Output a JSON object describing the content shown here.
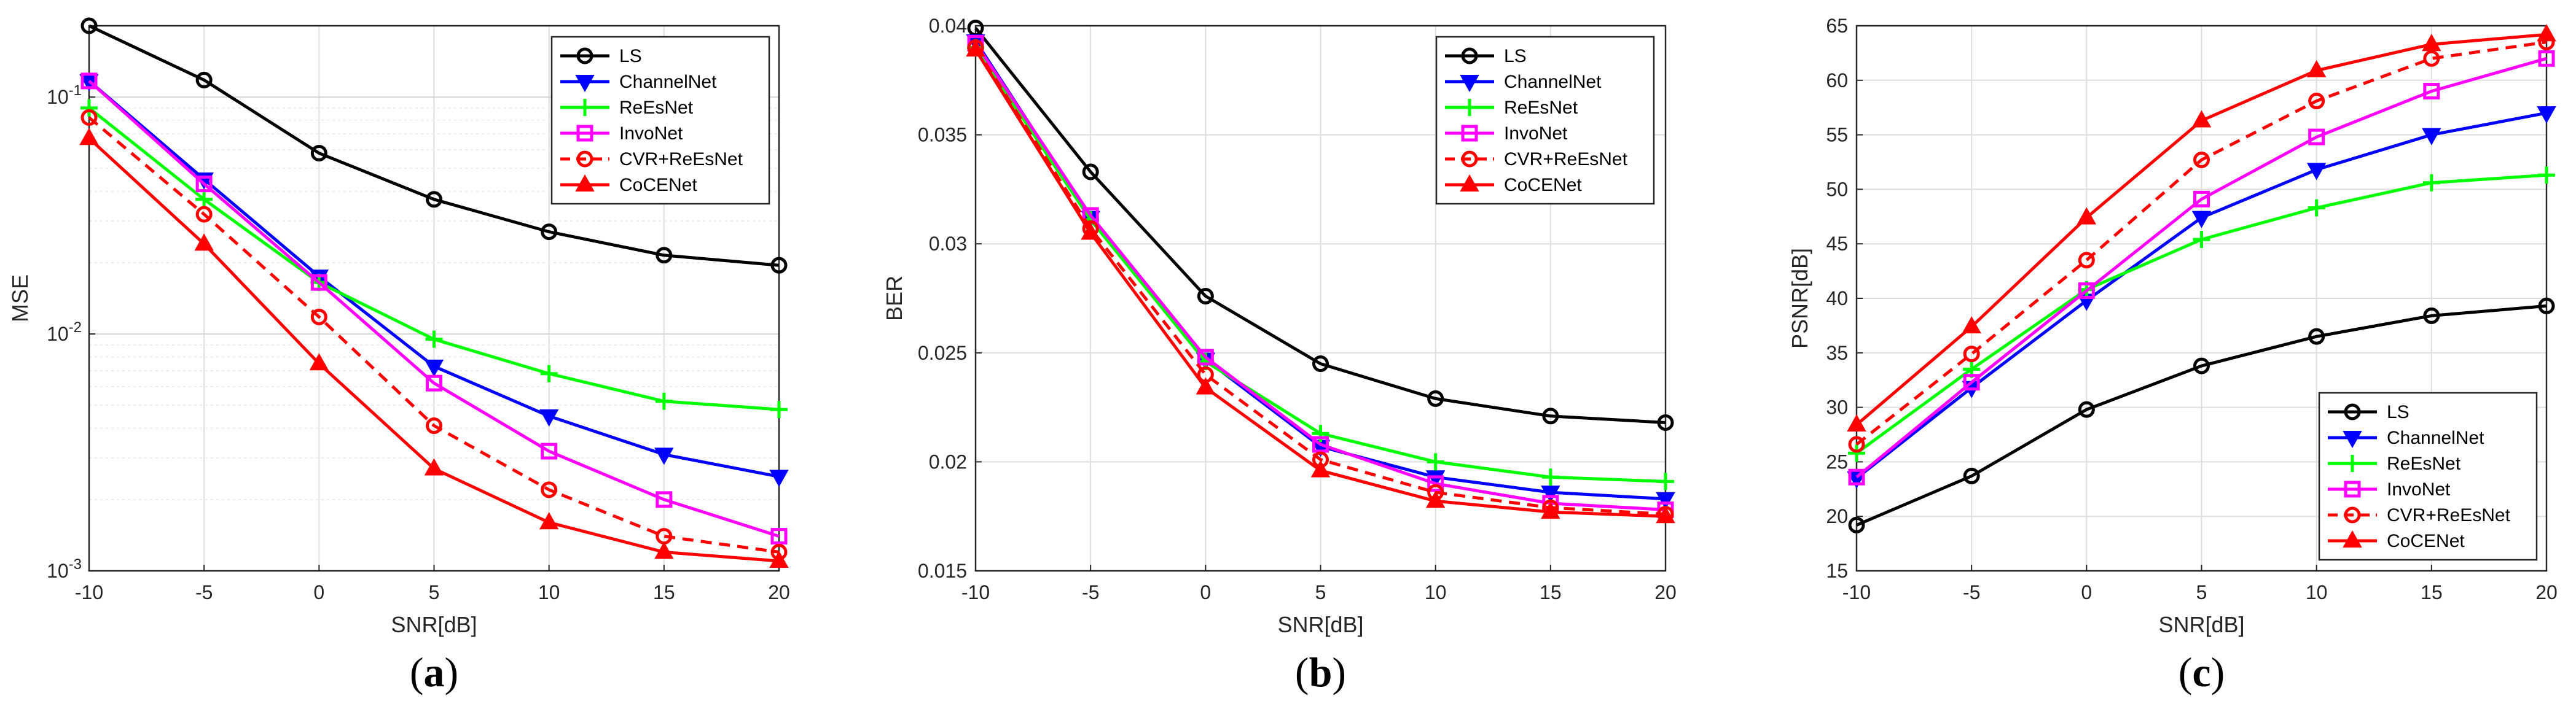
{
  "chart_data": [
    {
      "type": "line",
      "panel_label": "a",
      "caption_open": "(",
      "caption_close": ")",
      "xlabel": "SNR[dB]",
      "ylabel": "MSE",
      "yscale": "log",
      "xlim": [
        -10,
        20
      ],
      "ylim": [
        0.001,
        0.2
      ],
      "xticks": [
        -10,
        -5,
        0,
        5,
        10,
        15,
        20
      ],
      "yticks": [
        {
          "v": 0.001,
          "b": "10",
          "e": "-3"
        },
        {
          "v": 0.01,
          "b": "10",
          "e": "-2"
        },
        {
          "v": 0.1,
          "b": "10",
          "e": "-1"
        }
      ],
      "grid": true,
      "legend_position": "top-right",
      "x": [
        -10,
        -5,
        0,
        5,
        10,
        15,
        20
      ],
      "series": [
        {
          "name": "LS",
          "color": "#000000",
          "marker": "o",
          "dash": false,
          "values": [
            0.2,
            0.118,
            0.058,
            0.037,
            0.027,
            0.0215,
            0.0195
          ]
        },
        {
          "name": "ChannelNet",
          "color": "#0000ff",
          "marker": "v",
          "dash": false,
          "values": [
            0.117,
            0.045,
            0.0175,
            0.0073,
            0.0045,
            0.0031,
            0.0025
          ]
        },
        {
          "name": "ReEsNet",
          "color": "#00ff00",
          "marker": "+",
          "dash": false,
          "values": [
            0.09,
            0.037,
            0.0165,
            0.0095,
            0.0068,
            0.0052,
            0.0048
          ]
        },
        {
          "name": "InvoNet",
          "color": "#ff00ff",
          "marker": "s",
          "dash": false,
          "values": [
            0.117,
            0.043,
            0.0165,
            0.0062,
            0.0032,
            0.002,
            0.0014
          ]
        },
        {
          "name": "CVR+ReEsNet",
          "color": "#ff0000",
          "marker": "o",
          "dash": true,
          "values": [
            0.082,
            0.032,
            0.0118,
            0.0041,
            0.0022,
            0.0014,
            0.0012
          ]
        },
        {
          "name": "CoCENet",
          "color": "#ff0000",
          "marker": "^",
          "dash": false,
          "values": [
            0.067,
            0.024,
            0.0075,
            0.0027,
            0.0016,
            0.0012,
            0.0011
          ]
        }
      ]
    },
    {
      "type": "line",
      "panel_label": "b",
      "caption_open": "(",
      "caption_close": ")",
      "xlabel": "SNR[dB]",
      "ylabel": "BER",
      "yscale": "linear",
      "xlim": [
        -10,
        20
      ],
      "ylim": [
        0.015,
        0.04
      ],
      "xticks": [
        -10,
        -5,
        0,
        5,
        10,
        15,
        20
      ],
      "yticks": [
        {
          "v": 0.015,
          "t": "0.015"
        },
        {
          "v": 0.02,
          "t": "0.02"
        },
        {
          "v": 0.025,
          "t": "0.025"
        },
        {
          "v": 0.03,
          "t": "0.03"
        },
        {
          "v": 0.035,
          "t": "0.035"
        },
        {
          "v": 0.04,
          "t": "0.04"
        }
      ],
      "grid": true,
      "legend_position": "top-right",
      "x": [
        -10,
        -5,
        0,
        5,
        10,
        15,
        20
      ],
      "series": [
        {
          "name": "LS",
          "color": "#000000",
          "marker": "o",
          "dash": false,
          "values": [
            0.0399,
            0.0333,
            0.0276,
            0.0245,
            0.0229,
            0.0221,
            0.0218
          ]
        },
        {
          "name": "ChannelNet",
          "color": "#0000ff",
          "marker": "v",
          "dash": false,
          "values": [
            0.0393,
            0.0312,
            0.0247,
            0.0207,
            0.0193,
            0.0186,
            0.0183
          ]
        },
        {
          "name": "ReEsNet",
          "color": "#00ff00",
          "marker": "+",
          "dash": false,
          "values": [
            0.039,
            0.0311,
            0.0246,
            0.0213,
            0.02,
            0.0193,
            0.0191
          ]
        },
        {
          "name": "InvoNet",
          "color": "#ff00ff",
          "marker": "s",
          "dash": false,
          "values": [
            0.0392,
            0.0313,
            0.0248,
            0.0208,
            0.019,
            0.0181,
            0.0178
          ]
        },
        {
          "name": "CVR+ReEsNet",
          "color": "#ff0000",
          "marker": "o",
          "dash": true,
          "values": [
            0.039,
            0.0307,
            0.024,
            0.0201,
            0.0186,
            0.0179,
            0.0176
          ]
        },
        {
          "name": "CoCENet",
          "color": "#ff0000",
          "marker": "^",
          "dash": false,
          "values": [
            0.0389,
            0.0305,
            0.0234,
            0.0196,
            0.0182,
            0.0177,
            0.0175
          ]
        }
      ]
    },
    {
      "type": "line",
      "panel_label": "c",
      "caption_open": "(",
      "caption_close": ")",
      "xlabel": "SNR[dB]",
      "ylabel": "PSNR[dB]",
      "yscale": "linear",
      "xlim": [
        -10,
        20
      ],
      "ylim": [
        15,
        65
      ],
      "xticks": [
        -10,
        -5,
        0,
        5,
        10,
        15,
        20
      ],
      "yticks": [
        {
          "v": 15,
          "t": "15"
        },
        {
          "v": 20,
          "t": "20"
        },
        {
          "v": 25,
          "t": "25"
        },
        {
          "v": 30,
          "t": "30"
        },
        {
          "v": 35,
          "t": "35"
        },
        {
          "v": 40,
          "t": "40"
        },
        {
          "v": 45,
          "t": "45"
        },
        {
          "v": 50,
          "t": "50"
        },
        {
          "v": 55,
          "t": "55"
        },
        {
          "v": 60,
          "t": "60"
        },
        {
          "v": 65,
          "t": "65"
        }
      ],
      "grid": true,
      "legend_position": "bottom-right",
      "x": [
        -10,
        -5,
        0,
        5,
        10,
        15,
        20
      ],
      "series": [
        {
          "name": "LS",
          "color": "#000000",
          "marker": "o",
          "dash": false,
          "values": [
            19.2,
            23.7,
            29.8,
            33.8,
            36.5,
            38.4,
            39.3
          ]
        },
        {
          "name": "ChannelNet",
          "color": "#0000ff",
          "marker": "v",
          "dash": false,
          "values": [
            23.5,
            31.8,
            39.8,
            47.4,
            51.8,
            55.0,
            57.0
          ]
        },
        {
          "name": "ReEsNet",
          "color": "#00ff00",
          "marker": "+",
          "dash": false,
          "values": [
            25.8,
            33.5,
            40.8,
            45.4,
            48.3,
            50.6,
            51.3
          ]
        },
        {
          "name": "InvoNet",
          "color": "#ff00ff",
          "marker": "s",
          "dash": false,
          "values": [
            23.6,
            32.3,
            40.7,
            49.1,
            54.8,
            59.0,
            62.0
          ]
        },
        {
          "name": "CVR+ReEsNet",
          "color": "#ff0000",
          "marker": "o",
          "dash": true,
          "values": [
            26.6,
            34.9,
            43.5,
            52.7,
            58.1,
            62.0,
            63.5
          ]
        },
        {
          "name": "CoCENet",
          "color": "#ff0000",
          "marker": "^",
          "dash": false,
          "values": [
            28.4,
            37.4,
            47.4,
            56.3,
            60.9,
            63.3,
            64.2
          ]
        }
      ]
    }
  ]
}
